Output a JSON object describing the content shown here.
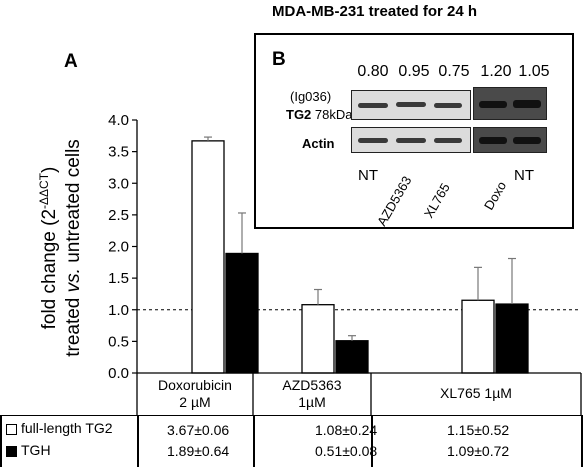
{
  "figure": {
    "title": "MDA-MB-231 treated for 24 h",
    "panel_a_label": "A",
    "panel_b_label": "B"
  },
  "chart_data": {
    "type": "bar",
    "categories": [
      "Doxorubicin\n2 µM",
      "AZD5363\n1µM",
      "XL765 1µM"
    ],
    "series": [
      {
        "name": "full-length TG2",
        "values": [
          3.67,
          1.08,
          1.15
        ],
        "errors": [
          0.06,
          0.24,
          0.52
        ],
        "color": "#ffffff",
        "stroke": "#000000"
      },
      {
        "name": "TGH",
        "values": [
          1.89,
          0.51,
          1.09
        ],
        "errors": [
          0.64,
          0.08,
          0.72
        ],
        "color": "#000000",
        "stroke": "#000000"
      }
    ],
    "ylabel_line1": "fold change (2",
    "ylabel_sup": "-ΔΔCT",
    "ylabel_line1_end": ")",
    "ylabel_line2_a": "treated ",
    "ylabel_line2_b": "vs.",
    "ylabel_line2_c": " untreated cells",
    "ylim": [
      0,
      4.0
    ],
    "yticks": [
      "0.0",
      "0.5",
      "1.0",
      "1.5",
      "2.0",
      "2.5",
      "3.0",
      "3.5",
      "4.0"
    ],
    "ytick_values": [
      0,
      0.5,
      1.0,
      1.5,
      2.0,
      2.5,
      3.0,
      3.5,
      4.0
    ],
    "reference_line": 1.0,
    "grid": false
  },
  "inset": {
    "ratios": [
      "0.80",
      "0.95",
      "0.75",
      "1.20",
      "1.05"
    ],
    "antibody_label": "(Ig036)",
    "target_label": "TG2",
    "size_label": "78kDa",
    "loading_label": "Actin",
    "lanes": [
      "NT",
      "AZD5363",
      "XL765",
      "Doxo",
      "NT"
    ]
  },
  "table": {
    "rows": [
      {
        "legend": "full-length TG2",
        "values": [
          "3.67±0.06",
          "1.08±0.24",
          "1.15±0.52"
        ]
      },
      {
        "legend": "TGH",
        "values": [
          "1.89±0.64",
          "0.51±0.08",
          "1.09±0.72"
        ]
      }
    ]
  }
}
